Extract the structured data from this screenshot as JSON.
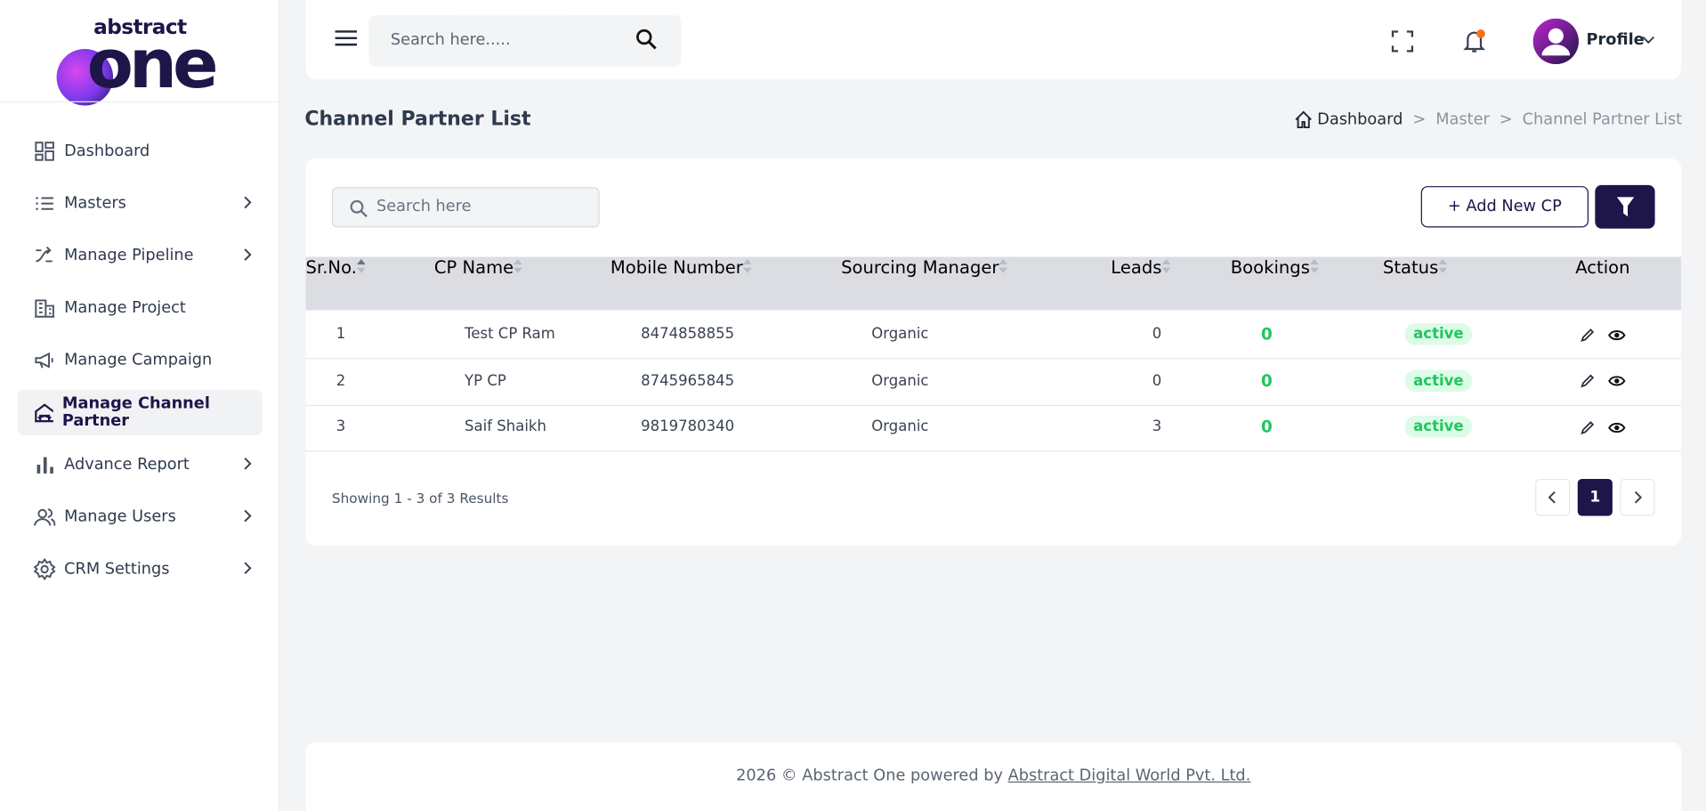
{
  "logo": {
    "top": "abstract",
    "main": "one"
  },
  "menu": [
    {
      "label": "Dashboard",
      "submenu": false,
      "active": false
    },
    {
      "label": "Masters",
      "submenu": true,
      "active": false
    },
    {
      "label": "Manage Pipeline",
      "submenu": true,
      "active": false
    },
    {
      "label": "Manage Project",
      "submenu": false,
      "active": false
    },
    {
      "label": "Manage Campaign",
      "submenu": false,
      "active": false
    },
    {
      "label": "Manage Channel Partner",
      "submenu": false,
      "active": true
    },
    {
      "label": "Advance Report",
      "submenu": true,
      "active": false
    },
    {
      "label": "Manage Users",
      "submenu": true,
      "active": false
    },
    {
      "label": "CRM Settings",
      "submenu": true,
      "active": false
    }
  ],
  "header": {
    "search_placeholder": "Search here.....",
    "profile": "Profile"
  },
  "page_title": "Channel Partner List",
  "breadcrumb": {
    "items": [
      "Dashboard",
      "Master",
      "Channel Partner List"
    ],
    "separator": ">"
  },
  "toolbar": {
    "search_placeholder": "Search here",
    "add_button": "+ Add New CP"
  },
  "table": {
    "columns": [
      "Sr.No.",
      "CP Name",
      "Mobile Number",
      "Sourcing Manager",
      "Leads",
      "Bookings",
      "Status",
      "Action"
    ],
    "rows": [
      [
        "1",
        "Test CP Ram",
        "8474858855",
        "Organic",
        "0",
        "0",
        "active"
      ],
      [
        "2",
        "YP CP",
        "8745965845",
        "Organic",
        "0",
        "0",
        "active"
      ],
      [
        "3",
        "Saif Shaikh",
        "9819780340",
        "Organic",
        "3",
        "0",
        "active"
      ]
    ]
  },
  "pagination": {
    "summary": "Showing 1 - 3 of 3 Results",
    "current": "1"
  },
  "footer": {
    "text": "2026 © Abstract One powered by",
    "link": "Abstract Digital World Pvt. Ltd."
  }
}
